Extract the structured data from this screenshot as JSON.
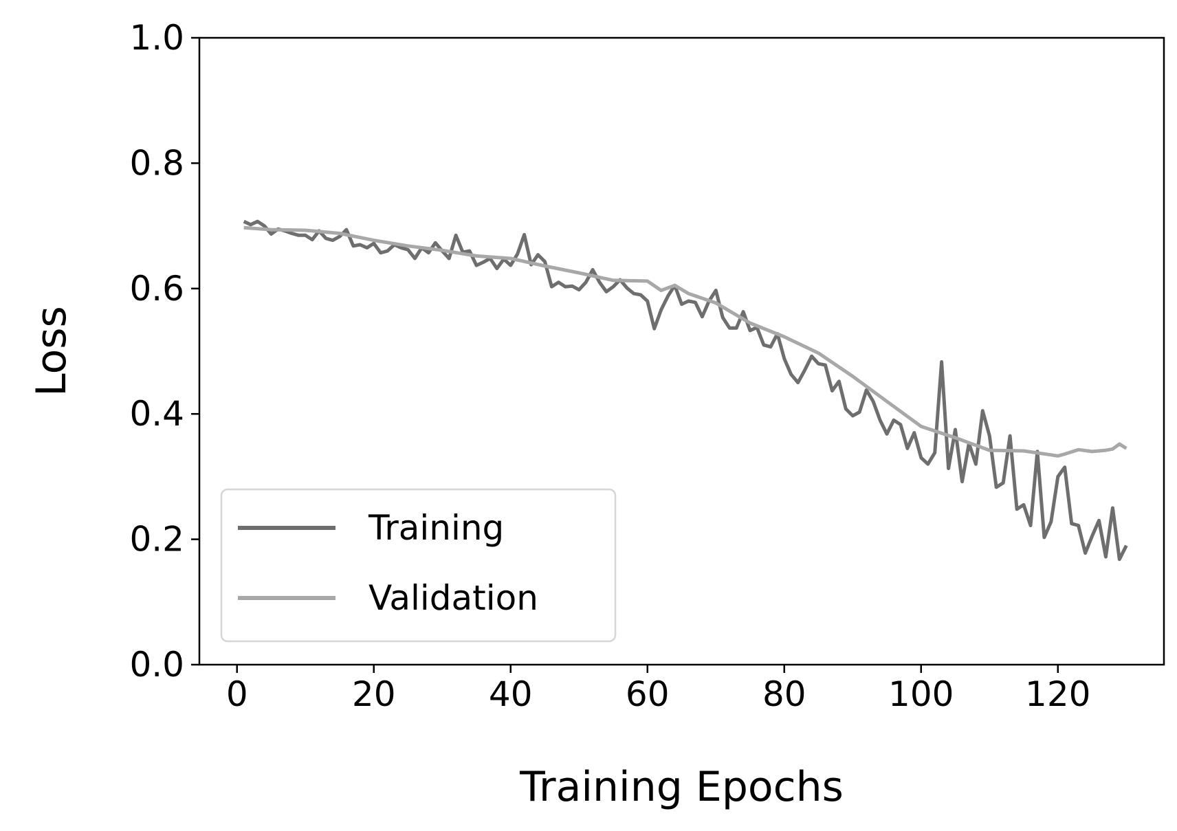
{
  "chart_data": {
    "type": "line",
    "xlabel": "Training Epochs",
    "ylabel": "Loss",
    "xlim": [
      -5.5,
      135.5
    ],
    "ylim": [
      0.0,
      1.0
    ],
    "xticks": [
      0,
      20,
      40,
      60,
      80,
      100,
      120
    ],
    "xtick_labels": [
      "0",
      "20",
      "40",
      "60",
      "80",
      "100",
      "120"
    ],
    "yticks": [
      0.0,
      0.2,
      0.4,
      0.6,
      0.8,
      1.0
    ],
    "ytick_labels": [
      "0.0",
      "0.2",
      "0.4",
      "0.6",
      "0.8",
      "1.0"
    ],
    "grid": false,
    "legend_position": "lower-left",
    "series": [
      {
        "name": "Training",
        "color": "#6e6e6e",
        "x": [
          1,
          2,
          3,
          4,
          5,
          6,
          7,
          8,
          9,
          10,
          11,
          12,
          13,
          14,
          15,
          16,
          17,
          18,
          19,
          20,
          21,
          22,
          23,
          24,
          25,
          26,
          27,
          28,
          29,
          30,
          31,
          32,
          33,
          34,
          35,
          36,
          37,
          38,
          39,
          40,
          41,
          42,
          43,
          44,
          45,
          46,
          47,
          48,
          49,
          50,
          51,
          52,
          53,
          54,
          55,
          56,
          57,
          58,
          59,
          60,
          61,
          62,
          63,
          64,
          65,
          66,
          67,
          68,
          69,
          70,
          71,
          72,
          73,
          74,
          75,
          76,
          77,
          78,
          79,
          80,
          81,
          82,
          83,
          84,
          85,
          86,
          87,
          88,
          89,
          90,
          91,
          92,
          93,
          94,
          95,
          96,
          97,
          98,
          99,
          100,
          101,
          102,
          103,
          104,
          105,
          106,
          107,
          108,
          109,
          110,
          111,
          112,
          113,
          114,
          115,
          116,
          117,
          118,
          119,
          120,
          121,
          122,
          123,
          124,
          125,
          126,
          127,
          128,
          129,
          130
        ],
        "values": [
          0.707,
          0.702,
          0.707,
          0.7,
          0.687,
          0.695,
          0.692,
          0.688,
          0.685,
          0.685,
          0.678,
          0.692,
          0.68,
          0.677,
          0.683,
          0.694,
          0.668,
          0.67,
          0.665,
          0.672,
          0.657,
          0.66,
          0.67,
          0.665,
          0.662,
          0.648,
          0.665,
          0.657,
          0.673,
          0.66,
          0.648,
          0.685,
          0.658,
          0.66,
          0.637,
          0.642,
          0.648,
          0.632,
          0.647,
          0.637,
          0.655,
          0.686,
          0.638,
          0.654,
          0.643,
          0.603,
          0.61,
          0.603,
          0.604,
          0.598,
          0.61,
          0.63,
          0.61,
          0.595,
          0.603,
          0.614,
          0.601,
          0.592,
          0.59,
          0.58,
          0.536,
          0.566,
          0.588,
          0.605,
          0.575,
          0.58,
          0.578,
          0.555,
          0.58,
          0.597,
          0.554,
          0.537,
          0.537,
          0.563,
          0.533,
          0.538,
          0.51,
          0.507,
          0.528,
          0.488,
          0.463,
          0.45,
          0.47,
          0.492,
          0.48,
          0.478,
          0.437,
          0.452,
          0.408,
          0.397,
          0.403,
          0.438,
          0.42,
          0.39,
          0.368,
          0.39,
          0.383,
          0.345,
          0.37,
          0.33,
          0.32,
          0.338,
          0.483,
          0.313,
          0.375,
          0.292,
          0.353,
          0.32,
          0.405,
          0.365,
          0.283,
          0.29,
          0.365,
          0.248,
          0.255,
          0.222,
          0.34,
          0.203,
          0.228,
          0.3,
          0.315,
          0.225,
          0.222,
          0.178,
          0.205,
          0.23,
          0.172,
          0.25,
          0.168,
          0.19
        ]
      },
      {
        "name": "Validation",
        "color": "#a8a8a8",
        "x": [
          1,
          5,
          10,
          15,
          20,
          25,
          30,
          35,
          40,
          45,
          50,
          55,
          60,
          62,
          64,
          66,
          70,
          75,
          80,
          85,
          90,
          95,
          100,
          105,
          110,
          115,
          120,
          121,
          123,
          125,
          127,
          128,
          129,
          130
        ],
        "values": [
          0.697,
          0.694,
          0.693,
          0.688,
          0.677,
          0.668,
          0.661,
          0.652,
          0.648,
          0.636,
          0.625,
          0.613,
          0.612,
          0.597,
          0.605,
          0.592,
          0.577,
          0.545,
          0.523,
          0.497,
          0.46,
          0.42,
          0.38,
          0.362,
          0.342,
          0.341,
          0.333,
          0.336,
          0.343,
          0.34,
          0.342,
          0.344,
          0.352,
          0.345
        ]
      }
    ]
  }
}
